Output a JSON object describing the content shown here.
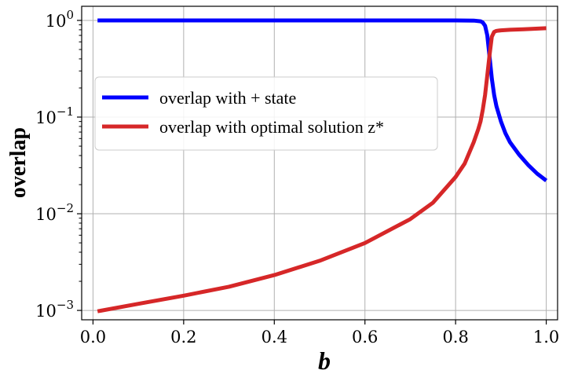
{
  "chart_data": {
    "type": "line",
    "xlabel": "b",
    "ylabel": "overlap",
    "xlim": [
      -0.025,
      1.025
    ],
    "ylim": [
      0.0008,
      1.4
    ],
    "yscale": "log",
    "grid": true,
    "legend_position": "center-left",
    "x_ticks": [
      {
        "value": 0.0,
        "label": "0.0"
      },
      {
        "value": 0.2,
        "label": "0.2"
      },
      {
        "value": 0.4,
        "label": "0.4"
      },
      {
        "value": 0.6,
        "label": "0.6"
      },
      {
        "value": 0.8,
        "label": "0.8"
      },
      {
        "value": 1.0,
        "label": "1.0"
      }
    ],
    "y_ticks": [
      {
        "value": 0.001,
        "base": "10",
        "exp": "−3"
      },
      {
        "value": 0.01,
        "base": "10",
        "exp": "−2"
      },
      {
        "value": 0.1,
        "base": "10",
        "exp": "−1"
      },
      {
        "value": 1,
        "base": "10",
        "exp": "0"
      }
    ],
    "series": [
      {
        "name": "overlap with + state",
        "color": "#0000ff",
        "x": [
          0.01,
          0.1,
          0.2,
          0.3,
          0.4,
          0.5,
          0.6,
          0.7,
          0.8,
          0.84,
          0.855,
          0.86,
          0.865,
          0.87,
          0.875,
          0.88,
          0.885,
          0.89,
          0.9,
          0.91,
          0.92,
          0.94,
          0.96,
          0.98,
          1.0
        ],
        "y": [
          1.0,
          1.0,
          1.0,
          1.0,
          1.0,
          1.0,
          1.0,
          1.0,
          1.0,
          0.995,
          0.98,
          0.95,
          0.88,
          0.7,
          0.42,
          0.25,
          0.17,
          0.13,
          0.09,
          0.068,
          0.055,
          0.041,
          0.032,
          0.026,
          0.022
        ]
      },
      {
        "name": "overlap with optimal solution z*",
        "color": "#d62728",
        "x": [
          0.01,
          0.1,
          0.2,
          0.3,
          0.4,
          0.5,
          0.6,
          0.7,
          0.75,
          0.8,
          0.82,
          0.84,
          0.85,
          0.855,
          0.86,
          0.865,
          0.87,
          0.875,
          0.88,
          0.885,
          0.89,
          0.9,
          0.92,
          0.95,
          1.0
        ],
        "y": [
          0.00098,
          0.00117,
          0.00142,
          0.00176,
          0.00232,
          0.00326,
          0.00498,
          0.0088,
          0.013,
          0.024,
          0.033,
          0.055,
          0.075,
          0.09,
          0.12,
          0.17,
          0.27,
          0.44,
          0.68,
          0.76,
          0.78,
          0.79,
          0.8,
          0.81,
          0.83
        ]
      }
    ]
  }
}
